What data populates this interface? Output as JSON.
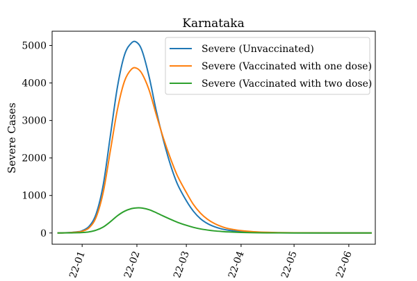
{
  "chart_data": {
    "type": "line",
    "title": "Karnataka",
    "xlabel": "",
    "ylabel": "Severe Cases",
    "x_tick_labels": [
      "2022-01",
      "2022-02",
      "2022-03",
      "2022-04",
      "2022-05",
      "2022-06"
    ],
    "x_tick_values": [
      "2022-01-01",
      "2022-02-01",
      "2022-03-01",
      "2022-04-01",
      "2022-05-01",
      "2022-06-01"
    ],
    "xlim": [
      "2021-12-15",
      "2022-06-16"
    ],
    "ylim": [
      -300,
      5380
    ],
    "y_ticks": [
      0,
      1000,
      2000,
      3000,
      4000,
      5000
    ],
    "grid": false,
    "legend_position": "top-right",
    "series": [
      {
        "name": "Severe (Unvaccinated)",
        "color": "#1f77b4",
        "x": [
          "2021-12-18",
          "2021-12-22",
          "2021-12-26",
          "2021-12-30",
          "2022-01-01",
          "2022-01-05",
          "2022-01-09",
          "2022-01-13",
          "2022-01-17",
          "2022-01-21",
          "2022-01-25",
          "2022-01-29",
          "2022-02-01",
          "2022-02-04",
          "2022-02-08",
          "2022-02-12",
          "2022-02-16",
          "2022-02-20",
          "2022-02-24",
          "2022-03-01",
          "2022-03-05",
          "2022-03-09",
          "2022-03-13",
          "2022-03-17",
          "2022-03-21",
          "2022-03-25",
          "2022-04-01",
          "2022-04-08",
          "2022-04-15",
          "2022-04-22",
          "2022-05-01",
          "2022-05-15",
          "2022-06-01",
          "2022-06-14"
        ],
        "y": [
          0,
          5,
          15,
          35,
          60,
          180,
          520,
          1300,
          2600,
          3900,
          4750,
          5070,
          5080,
          4850,
          4150,
          3250,
          2480,
          1820,
          1300,
          860,
          580,
          380,
          250,
          165,
          108,
          72,
          38,
          20,
          11,
          6,
          3,
          1,
          0,
          0
        ]
      },
      {
        "name": "Severe (Vaccinated with one dose)",
        "color": "#ff7f0e",
        "x": [
          "2021-12-18",
          "2021-12-22",
          "2021-12-26",
          "2021-12-30",
          "2022-01-01",
          "2022-01-05",
          "2022-01-09",
          "2022-01-13",
          "2022-01-17",
          "2022-01-21",
          "2022-01-25",
          "2022-01-29",
          "2022-02-01",
          "2022-02-04",
          "2022-02-08",
          "2022-02-12",
          "2022-02-16",
          "2022-02-20",
          "2022-02-24",
          "2022-03-01",
          "2022-03-05",
          "2022-03-09",
          "2022-03-13",
          "2022-03-17",
          "2022-03-21",
          "2022-03-25",
          "2022-04-01",
          "2022-04-08",
          "2022-04-15",
          "2022-04-22",
          "2022-05-01",
          "2022-05-15",
          "2022-06-01",
          "2022-06-14"
        ],
        "y": [
          0,
          4,
          12,
          28,
          45,
          140,
          430,
          1100,
          2200,
          3300,
          4050,
          4370,
          4390,
          4240,
          3800,
          3150,
          2530,
          1990,
          1520,
          1080,
          760,
          530,
          365,
          250,
          170,
          115,
          62,
          34,
          19,
          10,
          5,
          2,
          0,
          0
        ]
      },
      {
        "name": "Severe (Vaccinated with two dose)",
        "color": "#2ca02c",
        "x": [
          "2021-12-18",
          "2021-12-22",
          "2021-12-26",
          "2021-12-30",
          "2022-01-01",
          "2022-01-05",
          "2022-01-09",
          "2022-01-13",
          "2022-01-17",
          "2022-01-21",
          "2022-01-25",
          "2022-01-29",
          "2022-02-01",
          "2022-02-04",
          "2022-02-08",
          "2022-02-12",
          "2022-02-16",
          "2022-02-20",
          "2022-02-24",
          "2022-03-01",
          "2022-03-05",
          "2022-03-09",
          "2022-03-13",
          "2022-03-17",
          "2022-03-21",
          "2022-03-25",
          "2022-04-01",
          "2022-04-08",
          "2022-04-15",
          "2022-04-22",
          "2022-05-01",
          "2022-05-15",
          "2022-06-01",
          "2022-06-14"
        ],
        "y": [
          0,
          2,
          4,
          8,
          12,
          30,
          75,
          160,
          300,
          460,
          580,
          650,
          670,
          665,
          620,
          540,
          450,
          365,
          285,
          205,
          150,
          108,
          78,
          55,
          40,
          28,
          15,
          8,
          4,
          2,
          1,
          0,
          0,
          0
        ]
      }
    ]
  }
}
